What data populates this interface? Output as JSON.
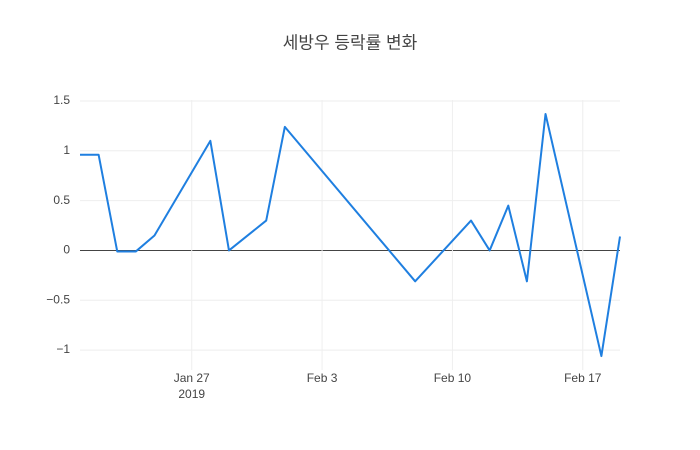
{
  "chart_data": {
    "type": "line",
    "title": "세방우 등락률 변화",
    "x": [
      "2019-01-21",
      "2019-01-22",
      "2019-01-23",
      "2019-01-24",
      "2019-01-25",
      "2019-01-28",
      "2019-01-29",
      "2019-01-31",
      "2019-02-01",
      "2019-02-08",
      "2019-02-11",
      "2019-02-12",
      "2019-02-13",
      "2019-02-14",
      "2019-02-15",
      "2019-02-18",
      "2019-02-19"
    ],
    "values": [
      0.96,
      0.96,
      -0.01,
      -0.01,
      0.15,
      1.1,
      0.0,
      0.3,
      1.24,
      -0.31,
      0.3,
      0.0,
      0.45,
      -0.31,
      1.37,
      -1.06,
      0.14
    ],
    "color": "#1f7fe0",
    "xlim": [
      "2019-01-21",
      "2019-02-19"
    ],
    "xticks": [
      {
        "value": "2019-01-27",
        "label": "Jan 27"
      },
      {
        "value": "2019-02-03",
        "label": "Feb 3"
      },
      {
        "value": "2019-02-10",
        "label": "Feb 10"
      },
      {
        "value": "2019-02-17",
        "label": "Feb 17"
      }
    ],
    "x_year_label": "2019",
    "ylim": [
      -1.2,
      1.51
    ],
    "yticks": [
      {
        "value": -1,
        "label": "−1"
      },
      {
        "value": -0.5,
        "label": "−0.5"
      },
      0,
      0.5,
      1,
      1.5
    ],
    "grid": true,
    "zeroline": true
  }
}
